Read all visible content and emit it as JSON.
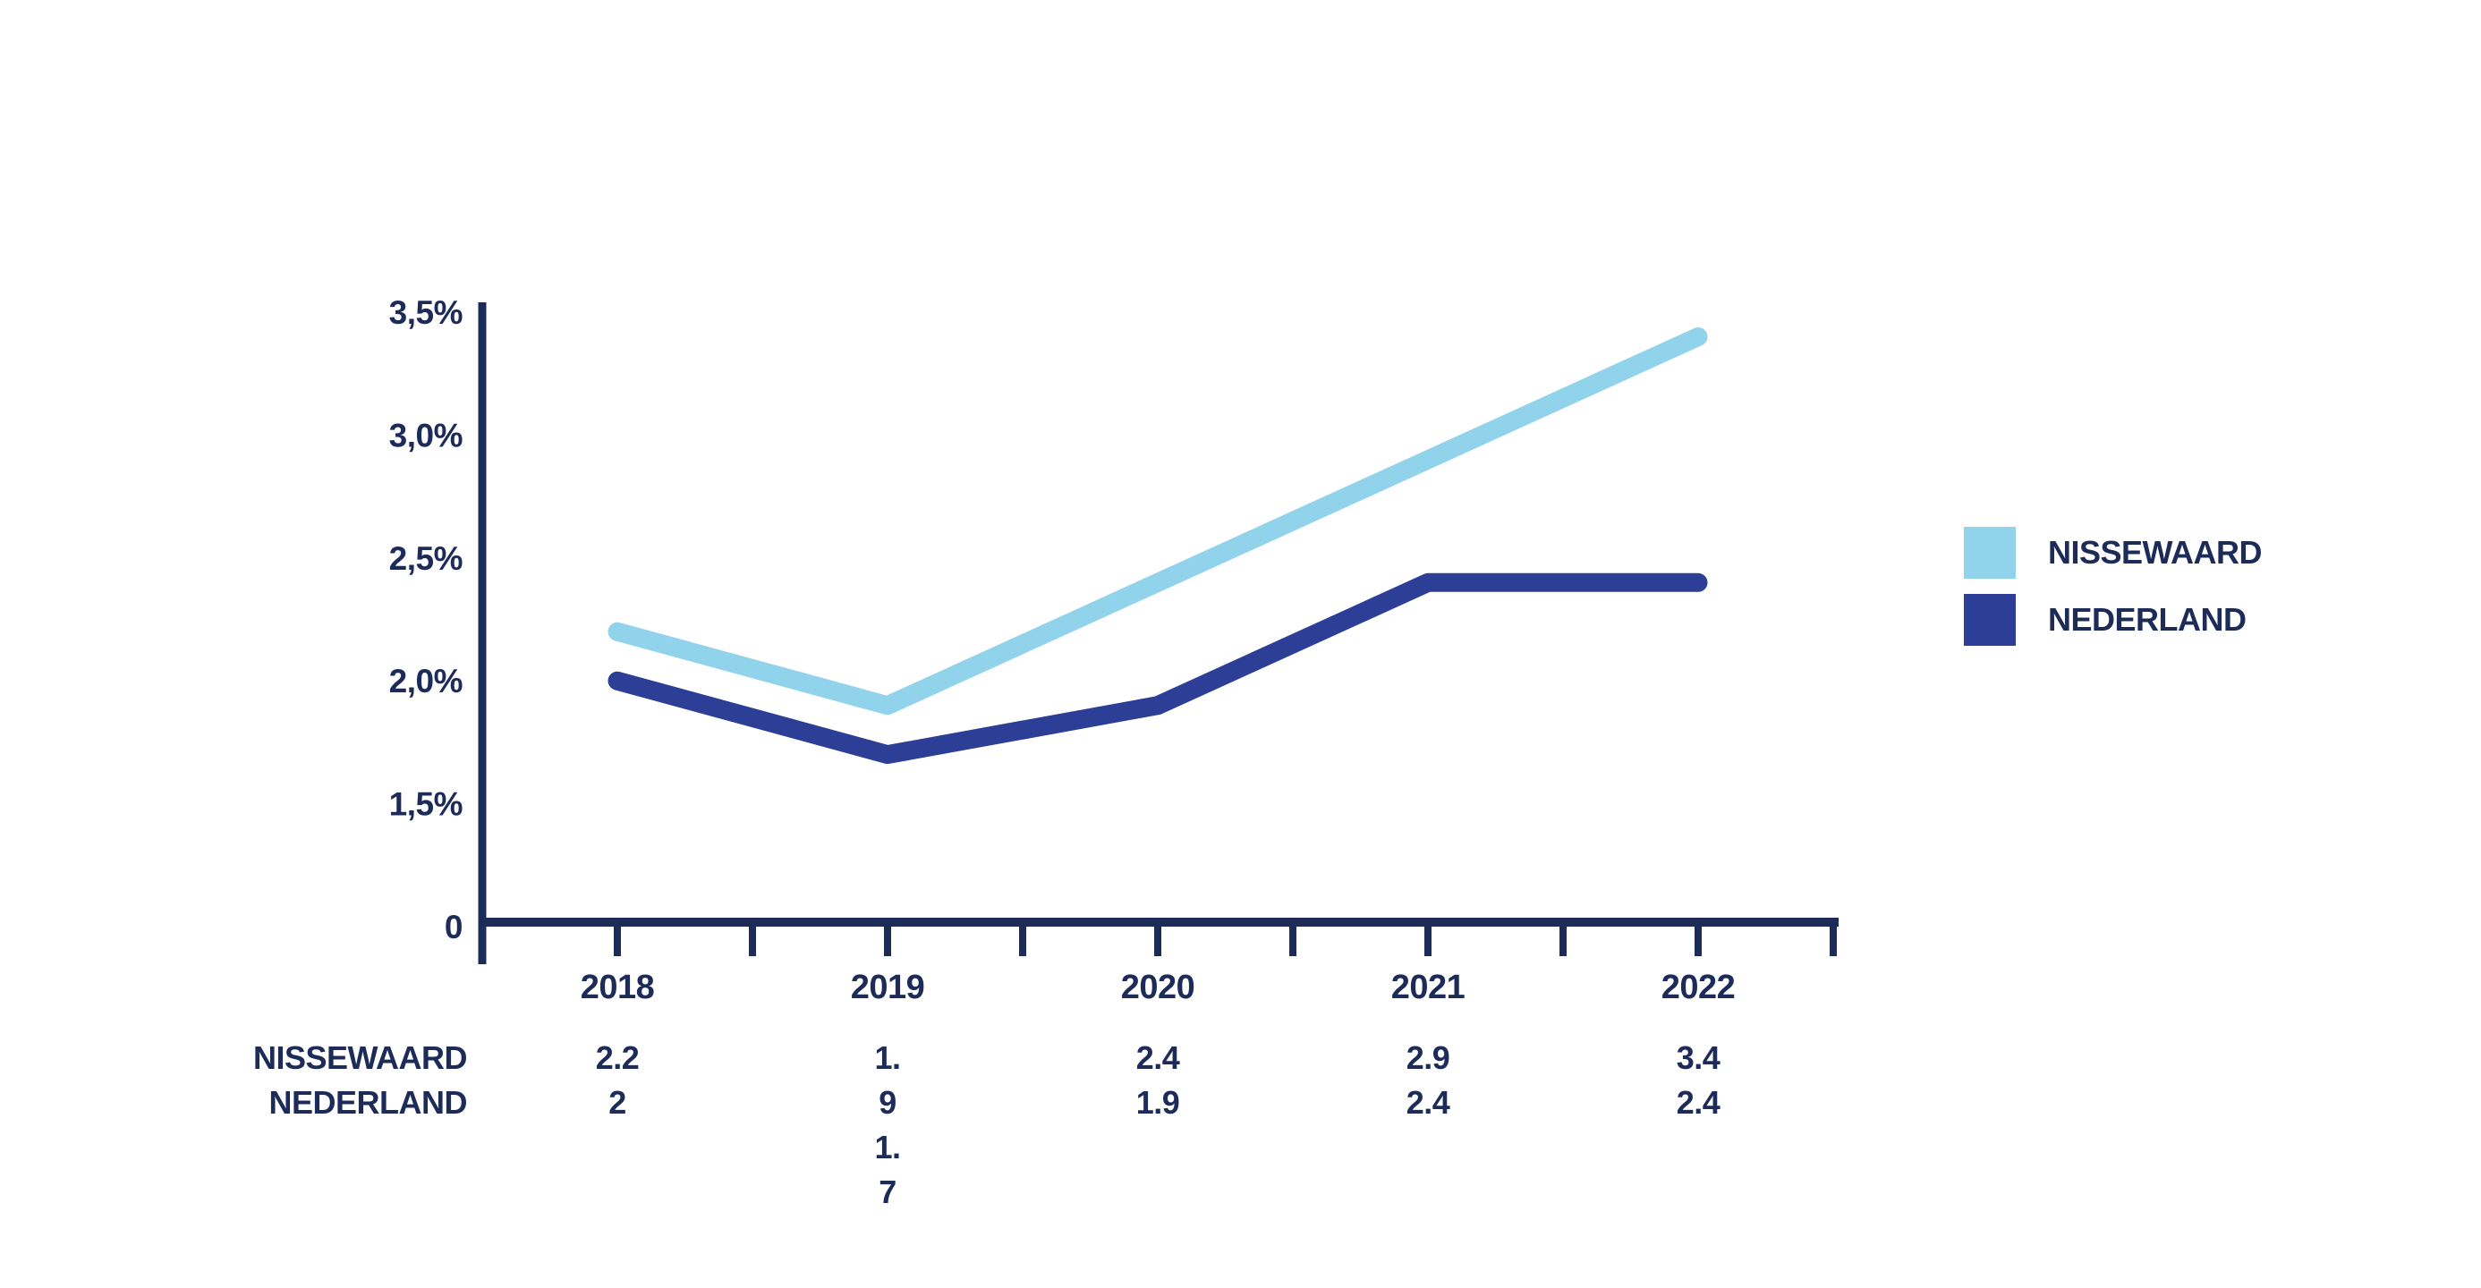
{
  "page": {
    "background": "#ffffff"
  },
  "colors": {
    "text_navy": "#1c2b57",
    "axis": "#1c2b57",
    "nissewaard_blue": "#92d3ec",
    "nederland_blue": "#2c3e96",
    "background": "#ffffff"
  },
  "chart_data": {
    "type": "line",
    "title": "",
    "categories": [
      "2018",
      "2019",
      "2020",
      "2021",
      "2022"
    ],
    "series": [
      {
        "name": "NISSEWAARD",
        "color": "#92d3ec",
        "values": [
          2.2,
          1.9,
          2.4,
          2.9,
          3.4
        ]
      },
      {
        "name": "NEDERLAND",
        "color": "#2c3e96",
        "values": [
          2.0,
          1.7,
          1.9,
          2.4,
          2.4
        ]
      }
    ],
    "y_axis": {
      "tick_labels": [
        "0",
        "1,5%",
        "2,0%",
        "2,5%",
        "3,0%",
        "3,5%"
      ],
      "tick_values": [
        0,
        1.5,
        2.0,
        2.5,
        3.0,
        3.5
      ],
      "unit": "%",
      "broken_scale_at_zero": true
    },
    "x_axis": {
      "minor_tick_between_years": true
    },
    "grid": false,
    "legend_position": "right",
    "line_width": 21
  },
  "table": {
    "row_labels": [
      "NISSEWAARD",
      "NEDERLAND"
    ],
    "columns": [
      {
        "year": "2018",
        "lines": [
          "2.2",
          "2"
        ]
      },
      {
        "year": "2019",
        "lines": [
          "1.",
          "9",
          "1.",
          "7"
        ]
      },
      {
        "year": "2020",
        "lines": [
          "2.4",
          "1.9"
        ]
      },
      {
        "year": "2021",
        "lines": [
          "2.9",
          "2.4"
        ]
      },
      {
        "year": "2022",
        "lines": [
          "3.4",
          "2.4"
        ]
      }
    ]
  }
}
